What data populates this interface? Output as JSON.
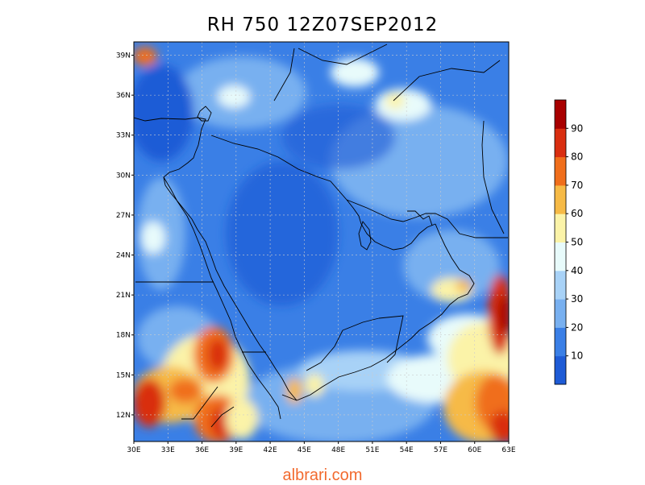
{
  "title": "RH 750 12Z07SEP2012",
  "footer": {
    "text": "albrari.com",
    "color": "#f26a2e"
  },
  "map": {
    "lon_range": [
      30,
      63
    ],
    "lat_range": [
      10,
      40
    ],
    "lon_ticks": [
      "30E",
      "33E",
      "36E",
      "39E",
      "42E",
      "45E",
      "48E",
      "51E",
      "54E",
      "57E",
      "60E",
      "63E"
    ],
    "lat_ticks": [
      "12N",
      "15N",
      "18N",
      "21N",
      "24N",
      "27N",
      "30N",
      "33N",
      "36N",
      "39N"
    ],
    "grid": true,
    "variable": "Relative humidity at 750 hPa"
  },
  "colorbar": {
    "labels": [
      "10",
      "20",
      "30",
      "40",
      "50",
      "60",
      "70",
      "80",
      "90"
    ],
    "colors": [
      "#1e5bd6",
      "#3a7fe6",
      "#78b0f0",
      "#a8d2f7",
      "#e8fbfb",
      "#fbf3a8",
      "#f6ba46",
      "#f06e1b",
      "#d92e10",
      "#a80000"
    ]
  }
}
